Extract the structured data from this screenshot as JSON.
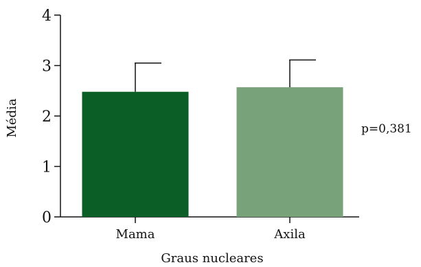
{
  "chart_data": {
    "type": "bar",
    "title": "",
    "xlabel": "Graus nucleares",
    "ylabel": "Média",
    "categories": [
      "Mama",
      "Axila"
    ],
    "values": [
      2.48,
      2.57
    ],
    "error_upper": [
      3.05,
      3.11
    ],
    "ylim": [
      0,
      4
    ],
    "yticks": [
      0,
      1,
      2,
      3,
      4
    ],
    "ytick_labels": [
      "0",
      "1",
      "2",
      "3",
      "4"
    ],
    "grid": false,
    "legend": "none",
    "annotation": "p=0,381",
    "colors": [
      "#0b5e26",
      "#78a27a"
    ],
    "axis_color": "#111111"
  }
}
